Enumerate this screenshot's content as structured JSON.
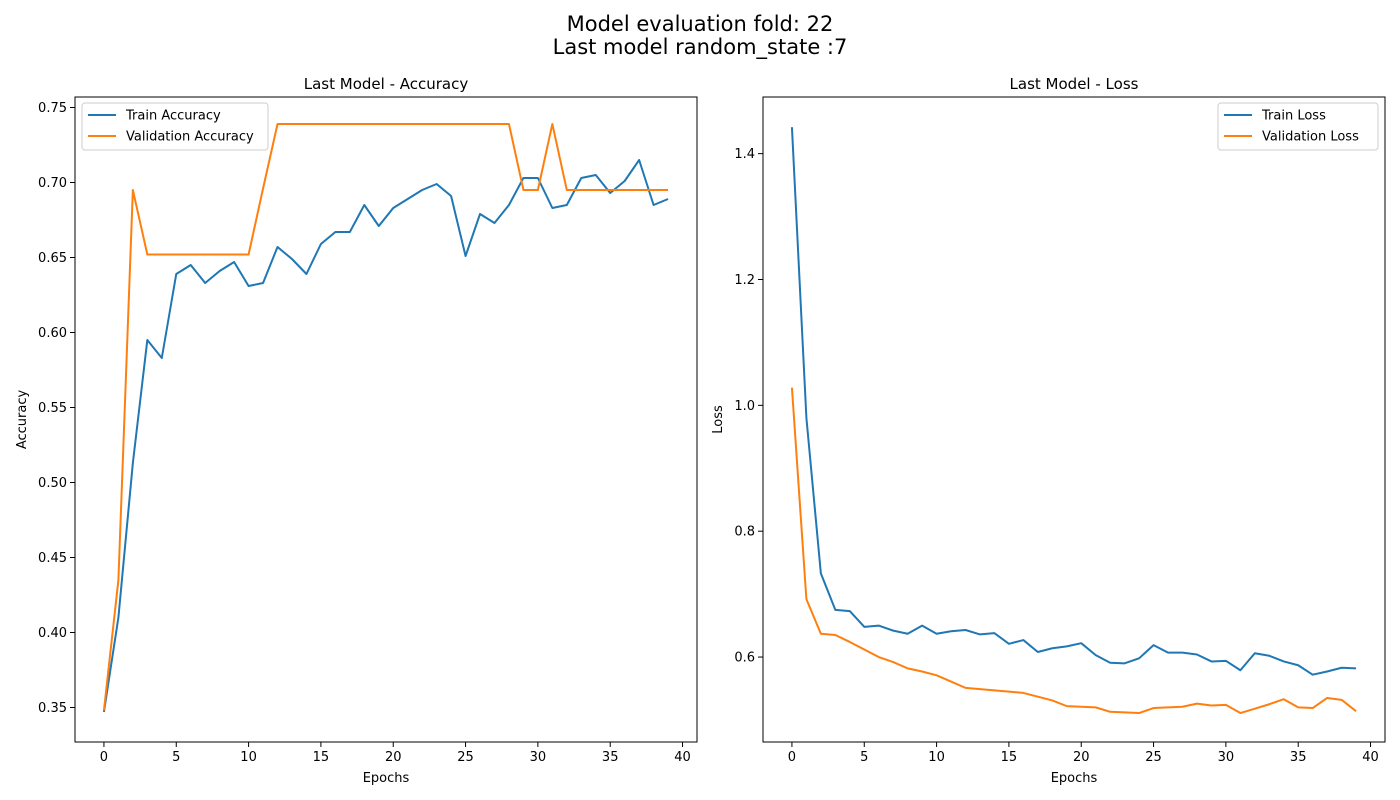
{
  "figure": {
    "title_line1": "Model evaluation fold: 22",
    "title_line2": "Last model random_state :7"
  },
  "colors": {
    "train": "#1f77b4",
    "validation": "#ff7f0e"
  },
  "chart_data": [
    {
      "type": "line",
      "title": "Last Model - Accuracy",
      "xlabel": "Epochs",
      "ylabel": "Accuracy",
      "xlim": [
        -2,
        41
      ],
      "ylim": [
        0.327,
        0.757
      ],
      "xticks": [
        0,
        5,
        10,
        15,
        20,
        25,
        30,
        35,
        40
      ],
      "yticks": [
        0.35,
        0.4,
        0.45,
        0.5,
        0.55,
        0.6,
        0.65,
        0.7,
        0.75
      ],
      "ytick_labels": [
        "0.35",
        "0.40",
        "0.45",
        "0.50",
        "0.55",
        "0.60",
        "0.65",
        "0.70",
        "0.75"
      ],
      "grid": false,
      "legend_position": "upper left",
      "x": [
        0,
        1,
        2,
        3,
        4,
        5,
        6,
        7,
        8,
        9,
        10,
        11,
        12,
        13,
        14,
        15,
        16,
        17,
        18,
        19,
        20,
        21,
        22,
        23,
        24,
        25,
        26,
        27,
        28,
        29,
        30,
        31,
        32,
        33,
        34,
        35,
        36,
        37,
        38,
        39
      ],
      "series": [
        {
          "name": "Train Accuracy",
          "color": "#1f77b4",
          "values": [
            0.347,
            0.41,
            0.513,
            0.595,
            0.583,
            0.639,
            0.645,
            0.633,
            0.641,
            0.647,
            0.631,
            0.633,
            0.657,
            0.649,
            0.639,
            0.659,
            0.667,
            0.667,
            0.685,
            0.671,
            0.683,
            0.689,
            0.695,
            0.699,
            0.691,
            0.651,
            0.679,
            0.673,
            0.685,
            0.703,
            0.703,
            0.683,
            0.685,
            0.703,
            0.705,
            0.693,
            0.701,
            0.715,
            0.685,
            0.689
          ]
        },
        {
          "name": "Validation Accuracy",
          "color": "#ff7f0e",
          "values": [
            0.348,
            0.435,
            0.695,
            0.652,
            0.652,
            0.652,
            0.652,
            0.652,
            0.652,
            0.652,
            0.652,
            0.696,
            0.739,
            0.739,
            0.739,
            0.739,
            0.739,
            0.739,
            0.739,
            0.739,
            0.739,
            0.739,
            0.739,
            0.739,
            0.739,
            0.739,
            0.739,
            0.739,
            0.739,
            0.695,
            0.695,
            0.739,
            0.695,
            0.695,
            0.695,
            0.695,
            0.695,
            0.695,
            0.695,
            0.695
          ]
        }
      ]
    },
    {
      "type": "line",
      "title": "Last Model - Loss",
      "xlabel": "Epochs",
      "ylabel": "Loss",
      "xlim": [
        -2,
        41
      ],
      "ylim": [
        0.465,
        1.49
      ],
      "xticks": [
        0,
        5,
        10,
        15,
        20,
        25,
        30,
        35,
        40
      ],
      "yticks": [
        0.6,
        0.8,
        1.0,
        1.2,
        1.4
      ],
      "ytick_labels": [
        "0.6",
        "0.8",
        "1.0",
        "1.2",
        "1.4"
      ],
      "grid": false,
      "legend_position": "upper right",
      "x": [
        0,
        1,
        2,
        3,
        4,
        5,
        6,
        7,
        8,
        9,
        10,
        11,
        12,
        13,
        14,
        15,
        16,
        17,
        18,
        19,
        20,
        21,
        22,
        23,
        24,
        25,
        26,
        27,
        28,
        29,
        30,
        31,
        32,
        33,
        34,
        35,
        36,
        37,
        38,
        39
      ],
      "series": [
        {
          "name": "Train Loss",
          "color": "#1f77b4",
          "values": [
            1.442,
            0.98,
            0.733,
            0.675,
            0.673,
            0.648,
            0.65,
            0.642,
            0.637,
            0.65,
            0.637,
            0.641,
            0.643,
            0.636,
            0.638,
            0.621,
            0.627,
            0.608,
            0.614,
            0.617,
            0.622,
            0.603,
            0.591,
            0.59,
            0.598,
            0.619,
            0.607,
            0.607,
            0.604,
            0.593,
            0.594,
            0.579,
            0.606,
            0.602,
            0.593,
            0.587,
            0.572,
            0.577,
            0.583,
            0.582
          ]
        },
        {
          "name": "Validation Loss",
          "color": "#ff7f0e",
          "values": [
            1.028,
            0.692,
            0.637,
            0.635,
            0.624,
            0.612,
            0.6,
            0.592,
            0.582,
            0.577,
            0.571,
            0.561,
            0.551,
            0.549,
            0.547,
            0.545,
            0.543,
            0.537,
            0.531,
            0.522,
            0.521,
            0.52,
            0.513,
            0.512,
            0.511,
            0.519,
            0.52,
            0.521,
            0.526,
            0.523,
            0.524,
            0.511,
            0.518,
            0.525,
            0.533,
            0.52,
            0.519,
            0.535,
            0.532,
            0.514
          ]
        }
      ]
    }
  ]
}
